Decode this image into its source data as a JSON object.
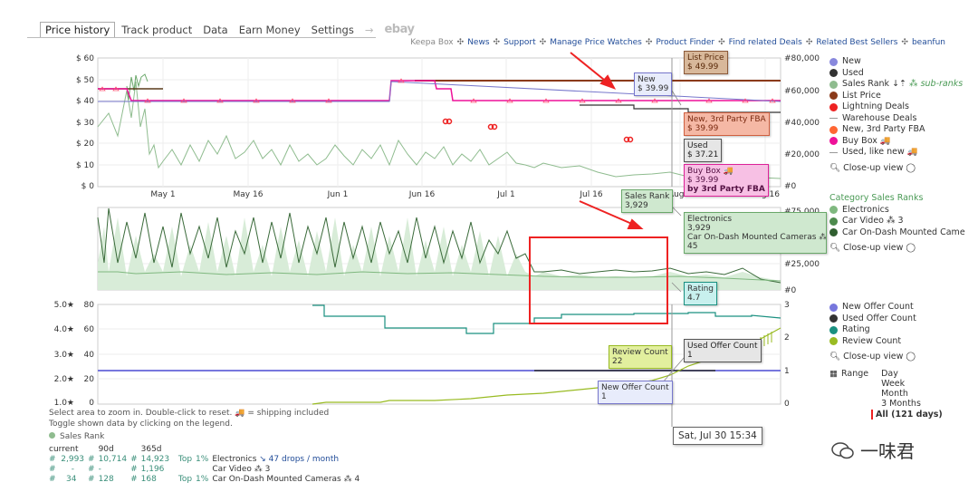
{
  "tabs": [
    {
      "label": "Price history",
      "active": true
    },
    {
      "label": "Track product"
    },
    {
      "label": "Data"
    },
    {
      "label": "Earn Money"
    },
    {
      "label": "Settings"
    }
  ],
  "tab_arrow": "→",
  "tab_ebay": "ebay",
  "links": [
    "Keepa Box",
    "News",
    "Support",
    "Manage Price Watches",
    "Product Finder",
    "Find related Deals",
    "Related Best Sellers",
    "beanfun"
  ],
  "link_sep": "✣",
  "price_chart": {
    "y_left_ticks": [
      "$ 60",
      "$ 50",
      "$ 40",
      "$ 30",
      "$ 20",
      "$ 10",
      "$ 0"
    ],
    "y_right_ticks": [
      "#80,000",
      "#60,000",
      "#40,000",
      "#20,000",
      "#0"
    ],
    "x_ticks": [
      "May 1",
      "May 16",
      "Jun 1",
      "Jun 16",
      "Jul 1",
      "Jul 16",
      "Aug 1",
      "Aug 16"
    ]
  },
  "rank_chart": {
    "y_right_ticks": [
      "#75,000",
      "#25,000",
      "#0"
    ]
  },
  "offer_chart": {
    "y_left_ticks": [
      "5.0★",
      "4.0★",
      "3.0★",
      "2.0★",
      "1.0★"
    ],
    "y_mid_ticks": [
      "80",
      "60",
      "40",
      "20",
      "0"
    ],
    "y_right_ticks": [
      "3",
      "2",
      "1",
      "0"
    ]
  },
  "labels": {
    "list_price": {
      "title": "List Price",
      "value": "$ 49.99"
    },
    "new": {
      "title": "New",
      "value": "$ 39.99"
    },
    "new_3p_fba": {
      "title": "New, 3rd Party FBA",
      "value": "$ 39.99"
    },
    "used": {
      "title": "Used",
      "value": "$ 37.21"
    },
    "buy_box": {
      "title": "Buy Box 🚚",
      "value": "$ 39.99",
      "by": "by 3rd Party FBA"
    },
    "sales_rank": {
      "title": "Sales Rank",
      "value": "3,929"
    },
    "electronics": {
      "title": "Electronics",
      "value": "3,929",
      "line2": "Car On-Dash Mounted Cameras ⁂ 4",
      "line3": "45"
    },
    "rating": {
      "title": "Rating",
      "value": "4.7"
    },
    "review_count": {
      "title": "Review Count",
      "value": "22"
    },
    "used_offer": {
      "title": "Used Offer Count",
      "value": "1"
    },
    "new_offer": {
      "title": "New Offer Count",
      "value": "1"
    }
  },
  "legend_price": [
    {
      "label": "New",
      "color": "#8888dd",
      "shape": "dot"
    },
    {
      "label": "Used",
      "color": "#333333",
      "shape": "dot"
    },
    {
      "label": "Sales Rank",
      "color": "#8fbc8f",
      "shape": "dot",
      "extra": "sub-ranks"
    },
    {
      "label": "List Price",
      "color": "#8b3a1a",
      "shape": "dot"
    },
    {
      "label": "Lightning Deals",
      "color": "#ee2222",
      "shape": "dot"
    },
    {
      "label": "Warehouse Deals",
      "color": "#999999",
      "shape": "dash"
    },
    {
      "label": "New, 3rd Party FBA",
      "color": "#ff6633",
      "shape": "dot"
    },
    {
      "label": "Buy Box 🚚",
      "color": "#ee1199",
      "shape": "dot"
    },
    {
      "label": "Used, like new 🚚",
      "color": "#999999",
      "shape": "dash"
    }
  ],
  "closeup": "Close-up view",
  "category_title": "Category Sales Ranks",
  "legend_rank": [
    {
      "label": "Electronics",
      "color": "#7fb87f"
    },
    {
      "label": "Car Video ⁂ 3",
      "color": "#4d8a4d"
    },
    {
      "label": "Car On-Dash Mounted Cameras ⁂",
      "color": "#2f5e2f"
    }
  ],
  "legend_offer": [
    {
      "label": "New Offer Count",
      "color": "#7777dd"
    },
    {
      "label": "Used Offer Count",
      "color": "#333333"
    },
    {
      "label": "Rating",
      "color": "#1a9080"
    },
    {
      "label": "Review Count",
      "color": "#99bb22"
    }
  ],
  "range": {
    "label": "Range",
    "options": [
      "Day",
      "Week",
      "Month",
      "3 Months"
    ],
    "selected": "All (121 days)"
  },
  "footer": {
    "line1": "Select area to zoom in. Double-click to reset.",
    "line1b": "= shipping included",
    "line2": "Toggle shown data by clicking on the legend.",
    "sales_rank": "Sales Rank"
  },
  "stats": {
    "headers": [
      "current",
      "90d",
      "365d"
    ],
    "rows": [
      {
        "c": "2,993",
        "d90": "10,714",
        "d365": "14,923",
        "top": "Top",
        "pct": "1%",
        "cat": "Electronics",
        "drops": "↘ 47 drops / month"
      },
      {
        "c": "-",
        "d90": "-",
        "d365": "1,196",
        "top": "",
        "pct": "",
        "cat": "Car Video ⁂ 3",
        "drops": ""
      },
      {
        "c": "34",
        "d90": "128",
        "d365": "168",
        "top": "Top",
        "pct": "1%",
        "cat": "Car On-Dash Mounted Cameras ⁂ 4",
        "drops": ""
      }
    ]
  },
  "tooltip": "Sat, Jul 30 15:34",
  "watermark": "一味君"
}
